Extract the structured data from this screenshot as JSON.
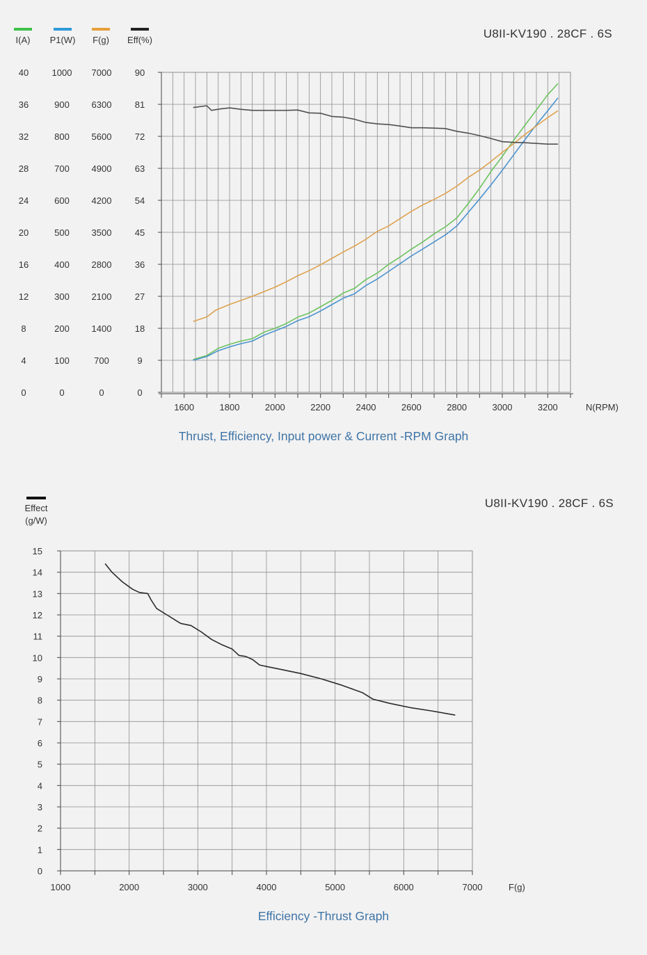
{
  "chart_data": [
    {
      "type": "line",
      "title": "Thrust, Efficiency, Input power & Current -RPM Graph",
      "model": "U8II-KV190 . 28CF . 6S",
      "xlabel": "N(RPM)",
      "xlim": [
        1500,
        3300
      ],
      "x_ticks": [
        "1600",
        "1800",
        "2000",
        "2200",
        "2400",
        "2600",
        "2800",
        "3000",
        "3200"
      ],
      "grid": true,
      "legend_position": "top-left",
      "axes": [
        {
          "label": "I(A)",
          "color": "#3fc14a",
          "ticks": [
            "0",
            "4",
            "8",
            "12",
            "16",
            "20",
            "24",
            "28",
            "32",
            "36",
            "40"
          ]
        },
        {
          "label": "P1(W)",
          "color": "#2e9ad8",
          "ticks": [
            "0",
            "100",
            "200",
            "300",
            "400",
            "500",
            "600",
            "700",
            "800",
            "900",
            "1000"
          ]
        },
        {
          "label": "F(g)",
          "color": "#e5a03a",
          "ticks": [
            "0",
            "700",
            "1400",
            "2100",
            "2800",
            "3500",
            "4200",
            "4900",
            "5600",
            "6300",
            "7000"
          ]
        },
        {
          "label": "Eff(%)",
          "color": "#222222",
          "ticks": [
            "0",
            "9",
            "18",
            "27",
            "36",
            "45",
            "54",
            "63",
            "72",
            "81",
            "90"
          ]
        }
      ],
      "series": [
        {
          "name": "I(A)",
          "color": "#6cc35e",
          "ymax": 40,
          "points": [
            [
              1640,
              4.1
            ],
            [
              1700,
              4.6
            ],
            [
              1750,
              5.5
            ],
            [
              1800,
              6.0
            ],
            [
              1850,
              6.4
            ],
            [
              1900,
              6.7
            ],
            [
              1950,
              7.5
            ],
            [
              2000,
              8.0
            ],
            [
              2050,
              8.6
            ],
            [
              2100,
              9.4
            ],
            [
              2150,
              9.9
            ],
            [
              2200,
              10.7
            ],
            [
              2250,
              11.5
            ],
            [
              2300,
              12.4
            ],
            [
              2350,
              13.0
            ],
            [
              2400,
              14.1
            ],
            [
              2450,
              14.9
            ],
            [
              2500,
              16.0
            ],
            [
              2550,
              16.9
            ],
            [
              2600,
              17.9
            ],
            [
              2650,
              18.8
            ],
            [
              2700,
              19.8
            ],
            [
              2750,
              20.7
            ],
            [
              2800,
              21.8
            ],
            [
              2850,
              23.6
            ],
            [
              2900,
              25.5
            ],
            [
              2950,
              27.6
            ],
            [
              3000,
              29.5
            ],
            [
              3050,
              31.5
            ],
            [
              3100,
              33.4
            ],
            [
              3150,
              35.3
            ],
            [
              3200,
              37.2
            ],
            [
              3245,
              38.6
            ]
          ]
        },
        {
          "name": "P1(W)",
          "color": "#4b93cf",
          "ymax": 1000,
          "points": [
            [
              1640,
              100
            ],
            [
              1700,
              112
            ],
            [
              1750,
              130
            ],
            [
              1800,
              142
            ],
            [
              1850,
              152
            ],
            [
              1900,
              160
            ],
            [
              1950,
              178
            ],
            [
              2000,
              192
            ],
            [
              2050,
              206
            ],
            [
              2100,
              224
            ],
            [
              2150,
              236
            ],
            [
              2200,
              254
            ],
            [
              2250,
              274
            ],
            [
              2300,
              294
            ],
            [
              2350,
              308
            ],
            [
              2400,
              334
            ],
            [
              2450,
              354
            ],
            [
              2500,
              378
            ],
            [
              2550,
              402
            ],
            [
              2600,
              426
            ],
            [
              2650,
              448
            ],
            [
              2700,
              470
            ],
            [
              2750,
              492
            ],
            [
              2800,
              520
            ],
            [
              2850,
              562
            ],
            [
              2900,
              604
            ],
            [
              2950,
              648
            ],
            [
              3000,
              694
            ],
            [
              3050,
              742
            ],
            [
              3100,
              790
            ],
            [
              3150,
              836
            ],
            [
              3200,
              880
            ],
            [
              3245,
              920
            ]
          ]
        },
        {
          "name": "F(g)",
          "color": "#dea24f",
          "ymax": 7000,
          "points": [
            [
              1640,
              1550
            ],
            [
              1700,
              1650
            ],
            [
              1740,
              1800
            ],
            [
              1800,
              1920
            ],
            [
              1850,
              2010
            ],
            [
              1900,
              2100
            ],
            [
              1950,
              2200
            ],
            [
              2000,
              2300
            ],
            [
              2050,
              2420
            ],
            [
              2100,
              2550
            ],
            [
              2150,
              2660
            ],
            [
              2200,
              2790
            ],
            [
              2250,
              2930
            ],
            [
              2300,
              3070
            ],
            [
              2350,
              3200
            ],
            [
              2400,
              3350
            ],
            [
              2450,
              3520
            ],
            [
              2500,
              3640
            ],
            [
              2550,
              3800
            ],
            [
              2600,
              3960
            ],
            [
              2650,
              4100
            ],
            [
              2700,
              4220
            ],
            [
              2750,
              4350
            ],
            [
              2800,
              4510
            ],
            [
              2850,
              4700
            ],
            [
              2900,
              4860
            ],
            [
              2950,
              5050
            ],
            [
              3000,
              5250
            ],
            [
              3050,
              5440
            ],
            [
              3100,
              5640
            ],
            [
              3150,
              5830
            ],
            [
              3200,
              6010
            ],
            [
              3245,
              6160
            ]
          ]
        },
        {
          "name": "Eff(%)",
          "color": "#505050",
          "ymax": 90,
          "points": [
            [
              1640,
              80.1
            ],
            [
              1700,
              80.6
            ],
            [
              1720,
              79.3
            ],
            [
              1760,
              79.7
            ],
            [
              1800,
              80.0
            ],
            [
              1850,
              79.6
            ],
            [
              1900,
              79.3
            ],
            [
              1950,
              79.3
            ],
            [
              2000,
              79.3
            ],
            [
              2050,
              79.3
            ],
            [
              2100,
              79.4
            ],
            [
              2150,
              78.6
            ],
            [
              2200,
              78.5
            ],
            [
              2250,
              77.6
            ],
            [
              2300,
              77.4
            ],
            [
              2350,
              76.8
            ],
            [
              2400,
              75.9
            ],
            [
              2450,
              75.5
            ],
            [
              2500,
              75.3
            ],
            [
              2550,
              74.9
            ],
            [
              2600,
              74.4
            ],
            [
              2650,
              74.4
            ],
            [
              2700,
              74.3
            ],
            [
              2750,
              74.2
            ],
            [
              2800,
              73.4
            ],
            [
              2850,
              72.9
            ],
            [
              2900,
              72.2
            ],
            [
              2950,
              71.4
            ],
            [
              3000,
              70.5
            ],
            [
              3050,
              70.3
            ],
            [
              3100,
              70.2
            ],
            [
              3150,
              70.0
            ],
            [
              3200,
              69.8
            ],
            [
              3245,
              69.8
            ]
          ]
        }
      ]
    },
    {
      "type": "line",
      "title": "Efficiency -Thrust Graph",
      "model": "U8II-KV190 . 28CF . 6S",
      "xlabel": "F(g)",
      "ylabel": "Effect (g/W)",
      "legend_label": "Effect",
      "legend_unit": "(g/W)",
      "legend_color": "#111111",
      "xlim": [
        1000,
        7000
      ],
      "ylim": [
        0,
        15
      ],
      "x_ticks": [
        "1000",
        "2000",
        "3000",
        "4000",
        "5000",
        "6000",
        "7000"
      ],
      "y_ticks": [
        "0",
        "1",
        "2",
        "3",
        "4",
        "5",
        "6",
        "7",
        "8",
        "9",
        "10",
        "11",
        "12",
        "13",
        "14",
        "15"
      ],
      "grid": true,
      "series": [
        {
          "name": "Effect",
          "color": "#2b2b2b",
          "points": [
            [
              1650,
              14.4
            ],
            [
              1750,
              14.0
            ],
            [
              1900,
              13.55
            ],
            [
              2050,
              13.2
            ],
            [
              2150,
              13.05
            ],
            [
              2270,
              13.0
            ],
            [
              2320,
              12.7
            ],
            [
              2400,
              12.3
            ],
            [
              2550,
              12.0
            ],
            [
              2750,
              11.6
            ],
            [
              2900,
              11.5
            ],
            [
              3050,
              11.2
            ],
            [
              3200,
              10.85
            ],
            [
              3350,
              10.6
            ],
            [
              3500,
              10.4
            ],
            [
              3600,
              10.1
            ],
            [
              3700,
              10.05
            ],
            [
              3800,
              9.9
            ],
            [
              3900,
              9.65
            ],
            [
              4000,
              9.58
            ],
            [
              4200,
              9.45
            ],
            [
              4500,
              9.25
            ],
            [
              4800,
              9.0
            ],
            [
              5100,
              8.7
            ],
            [
              5400,
              8.35
            ],
            [
              5550,
              8.05
            ],
            [
              5800,
              7.85
            ],
            [
              6100,
              7.65
            ],
            [
              6400,
              7.5
            ],
            [
              6750,
              7.3
            ]
          ]
        }
      ]
    }
  ]
}
